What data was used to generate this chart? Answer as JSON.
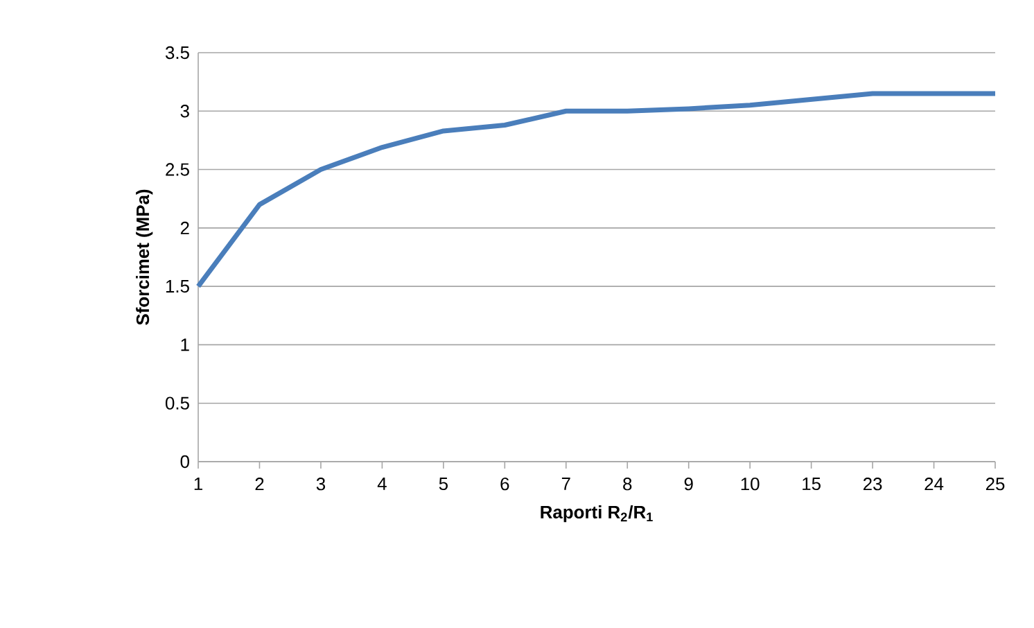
{
  "chart_data": {
    "type": "line",
    "xlabel": "Raporti R$_{2}$/R$_{1}$",
    "ylabel": "Sforcimet (MPa)",
    "categories": [
      "1",
      "2",
      "3",
      "4",
      "5",
      "6",
      "7",
      "8",
      "9",
      "10",
      "15",
      "23",
      "24",
      "25"
    ],
    "series": [
      {
        "color": "#4a7ebb",
        "values": [
          1.5,
          2.2,
          2.5,
          2.69,
          2.83,
          2.88,
          3.0,
          3.0,
          3.02,
          3.05,
          3.1,
          3.15,
          3.15,
          3.15
        ]
      }
    ],
    "ylim": [
      0,
      3.5
    ],
    "yticks": [
      0,
      0.5,
      1,
      1.5,
      2,
      2.5,
      3,
      3.5
    ],
    "grid": "y",
    "marker": "none",
    "line_style": "solid"
  }
}
